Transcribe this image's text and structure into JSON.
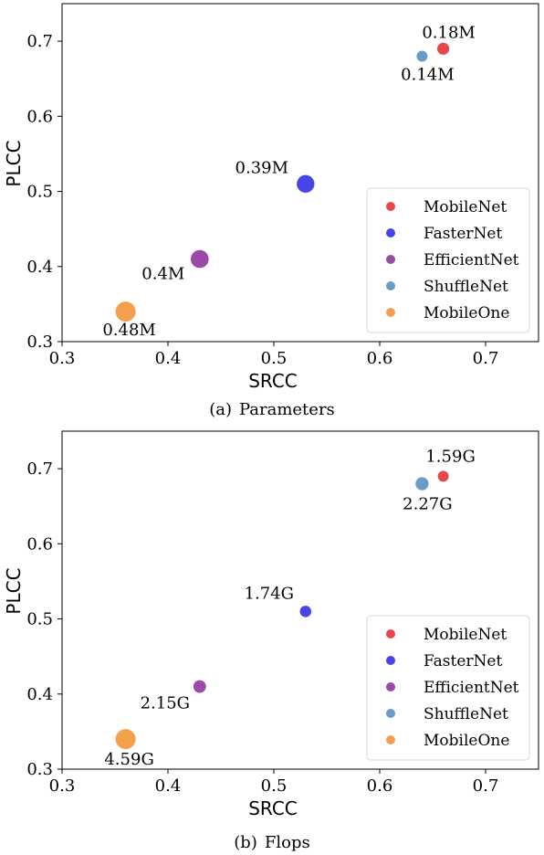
{
  "chart_data": [
    {
      "type": "scatter",
      "subfigure_label": "(a)",
      "caption": "Parameters",
      "xlabel": "SRCC",
      "ylabel": "PLCC",
      "xlim": [
        0.3,
        0.75
      ],
      "ylim": [
        0.3,
        0.75
      ],
      "xticks": [
        "0.3",
        "0.4",
        "0.5",
        "0.6",
        "0.7"
      ],
      "yticks": [
        "0.3",
        "0.4",
        "0.5",
        "0.6",
        "0.7"
      ],
      "grid": false,
      "legend_position": "lower-right",
      "series": [
        {
          "name": "MobileNet",
          "color": "#e8474b",
          "x": 0.66,
          "y": 0.69,
          "annotation": "0.18M",
          "size_value": 0.18
        },
        {
          "name": "FasterNet",
          "color": "#4646e6",
          "x": 0.53,
          "y": 0.51,
          "annotation": "0.39M",
          "size_value": 0.39
        },
        {
          "name": "EfficientNet",
          "color": "#9b48a8",
          "x": 0.43,
          "y": 0.41,
          "annotation": "0.4M",
          "size_value": 0.4
        },
        {
          "name": "ShuffleNet",
          "color": "#6a9ccb",
          "x": 0.64,
          "y": 0.68,
          "annotation": "0.14M",
          "size_value": 0.14
        },
        {
          "name": "MobileOne",
          "color": "#f5a04c",
          "x": 0.36,
          "y": 0.34,
          "annotation": "0.48M",
          "size_value": 0.48
        }
      ]
    },
    {
      "type": "scatter",
      "subfigure_label": "(b)",
      "caption": "Flops",
      "xlabel": "SRCC",
      "ylabel": "PLCC",
      "xlim": [
        0.3,
        0.75
      ],
      "ylim": [
        0.3,
        0.75
      ],
      "xticks": [
        "0.3",
        "0.4",
        "0.5",
        "0.6",
        "0.7"
      ],
      "yticks": [
        "0.3",
        "0.4",
        "0.5",
        "0.6",
        "0.7"
      ],
      "grid": false,
      "legend_position": "lower-right",
      "series": [
        {
          "name": "MobileNet",
          "color": "#e8474b",
          "x": 0.66,
          "y": 0.69,
          "annotation": "1.59G",
          "size_value": 1.59
        },
        {
          "name": "FasterNet",
          "color": "#4646e6",
          "x": 0.53,
          "y": 0.51,
          "annotation": "1.74G",
          "size_value": 1.74
        },
        {
          "name": "EfficientNet",
          "color": "#9b48a8",
          "x": 0.43,
          "y": 0.41,
          "annotation": "2.15G",
          "size_value": 2.15
        },
        {
          "name": "ShuffleNet",
          "color": "#6a9ccb",
          "x": 0.64,
          "y": 0.68,
          "annotation": "2.27G",
          "size_value": 2.27
        },
        {
          "name": "MobileOne",
          "color": "#f5a04c",
          "x": 0.36,
          "y": 0.34,
          "annotation": "4.59G",
          "size_value": 4.59
        }
      ]
    }
  ]
}
